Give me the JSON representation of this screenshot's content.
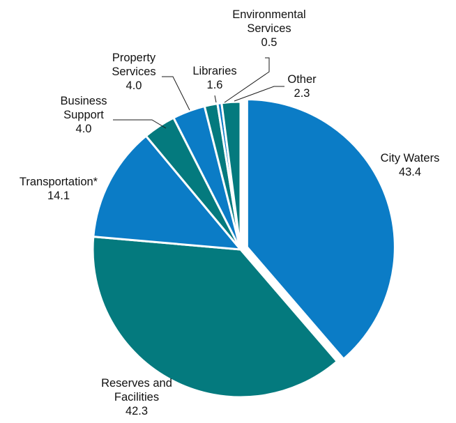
{
  "chart_data": {
    "type": "pie",
    "title": "",
    "start": "12 o'clock, clockwise",
    "slices": [
      {
        "name": "City Waters",
        "label_lines": [
          "City Waters"
        ],
        "value": 43.4,
        "value_label": "43.4",
        "color": "#0b7cc6",
        "key": "city-waters"
      },
      {
        "name": "Reserves and Facilities",
        "label_lines": [
          "Reserves and",
          "Facilities"
        ],
        "value": 42.3,
        "value_label": "42.3",
        "color": "#047a7e",
        "key": "reserves-and-facilities"
      },
      {
        "name": "Transportation*",
        "label_lines": [
          "Transportation*"
        ],
        "value": 14.1,
        "value_label": "14.1",
        "color": "#0b7cc6",
        "key": "transportation"
      },
      {
        "name": "Business Support",
        "label_lines": [
          "Business",
          "Support"
        ],
        "value": 4.0,
        "value_label": "4.0",
        "color": "#047a7e",
        "key": "business-support"
      },
      {
        "name": "Property Services",
        "label_lines": [
          "Property",
          "Services"
        ],
        "value": 4.0,
        "value_label": "4.0",
        "color": "#0b7cc6",
        "key": "property-services"
      },
      {
        "name": "Libraries",
        "label_lines": [
          "Libraries"
        ],
        "value": 1.6,
        "value_label": "1.6",
        "color": "#047a7e",
        "key": "libraries"
      },
      {
        "name": "Environmental Services",
        "label_lines": [
          "Environmental",
          "Services"
        ],
        "value": 0.5,
        "value_label": "0.5",
        "color": "#0b7cc6",
        "key": "environmental-services"
      },
      {
        "name": "Other",
        "label_lines": [
          "Other"
        ],
        "value": 2.3,
        "value_label": "2.3",
        "color": "#047a7e",
        "key": "other"
      }
    ],
    "exploded": "City Waters"
  }
}
